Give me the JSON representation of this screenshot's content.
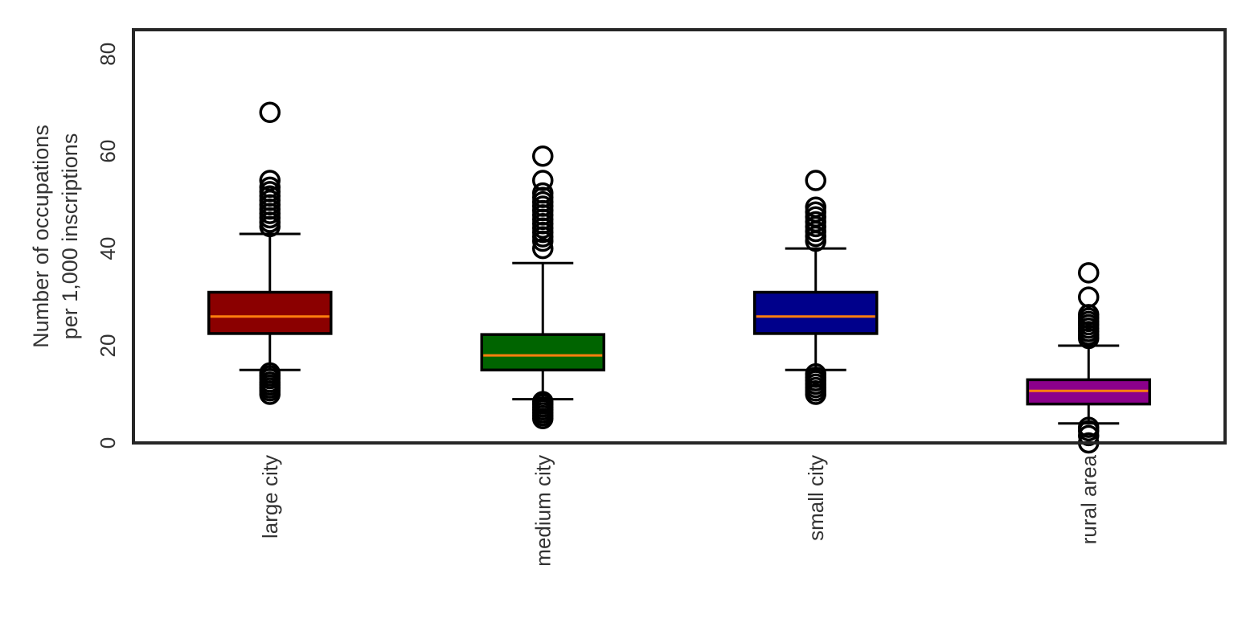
{
  "chart_data": {
    "type": "box",
    "title": "",
    "xlabel": "",
    "ylabel_lines": [
      "Number of occupations",
      "per 1,000 inscriptions"
    ],
    "ylim": [
      0,
      85
    ],
    "yticks": [
      0,
      20,
      40,
      60,
      80
    ],
    "grid": false,
    "categories": [
      "large city",
      "medium city",
      "small city",
      "rural area"
    ],
    "boxes": [
      {
        "category": "large city",
        "color": "#8b0000",
        "whisker_low": 15,
        "q1": 22.5,
        "median": 26,
        "q3": 31,
        "whisker_high": 43,
        "outliers": [
          10,
          10.7,
          11.3,
          11.9,
          12.5,
          13.2,
          13.8,
          14.4,
          44.5,
          45.4,
          46.3,
          47.2,
          48.1,
          49,
          49.9,
          50.8,
          51.7,
          52.6,
          54,
          68
        ]
      },
      {
        "category": "medium city",
        "color": "#006400",
        "whisker_low": 9,
        "q1": 15,
        "median": 18,
        "q3": 22.3,
        "whisker_high": 37,
        "outliers": [
          5,
          5.6,
          6.2,
          6.8,
          7.4,
          8,
          8.5,
          40,
          41.5,
          42.4,
          43.3,
          44.2,
          45.1,
          46,
          46.9,
          47.8,
          48.7,
          49.6,
          50.5,
          51.4,
          54,
          59
        ]
      },
      {
        "category": "small city",
        "color": "#00008b",
        "whisker_low": 15,
        "q1": 22.5,
        "median": 26,
        "q3": 31,
        "whisker_high": 40,
        "outliers": [
          10,
          10.7,
          11.4,
          12.1,
          12.8,
          13.5,
          14.2,
          41.5,
          42.5,
          43.5,
          44.5,
          45.5,
          46.5,
          47.5,
          48.5,
          54
        ]
      },
      {
        "category": "rural area",
        "color": "#8b008b",
        "whisker_low": 4,
        "q1": 8,
        "median": 10.7,
        "q3": 13,
        "whisker_high": 20,
        "outliers": [
          0,
          1.5,
          2.5,
          3.2,
          21.5,
          22.2,
          22.9,
          23.6,
          24.3,
          25,
          25.7,
          26.4,
          30,
          35
        ]
      }
    ],
    "colors": {
      "median": "#ff7f0e",
      "edge": "#000000",
      "frame": "#262626",
      "text": "#333333"
    }
  }
}
